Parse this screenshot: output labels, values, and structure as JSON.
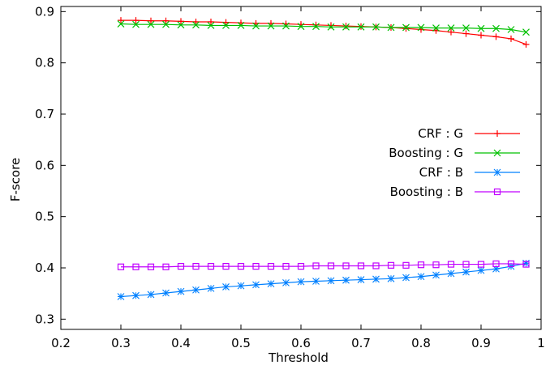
{
  "chart_data": {
    "type": "line",
    "title": "",
    "xlabel": "Threshold",
    "ylabel": "F-score",
    "xlim": [
      0.2,
      1.0
    ],
    "ylim": [
      0.28,
      0.91
    ],
    "xticks": [
      "0.2",
      "0.3",
      "0.4",
      "0.5",
      "0.6",
      "0.7",
      "0.8",
      "0.9",
      "1"
    ],
    "yticks": [
      "0.3",
      "0.4",
      "0.5",
      "0.6",
      "0.7",
      "0.8",
      "0.9"
    ],
    "grid": false,
    "legend_position": "right",
    "x": [
      0.3,
      0.325,
      0.35,
      0.375,
      0.4,
      0.425,
      0.45,
      0.475,
      0.5,
      0.525,
      0.55,
      0.575,
      0.6,
      0.625,
      0.65,
      0.675,
      0.7,
      0.725,
      0.75,
      0.775,
      0.8,
      0.825,
      0.85,
      0.875,
      0.9,
      0.925,
      0.95,
      0.975
    ],
    "series": [
      {
        "name": "CRF : G",
        "color": "#ff0000",
        "marker": "plus",
        "values": [
          0.883,
          0.883,
          0.882,
          0.882,
          0.881,
          0.88,
          0.88,
          0.879,
          0.878,
          0.877,
          0.877,
          0.876,
          0.875,
          0.874,
          0.873,
          0.872,
          0.871,
          0.87,
          0.869,
          0.867,
          0.865,
          0.863,
          0.86,
          0.857,
          0.854,
          0.851,
          0.847,
          0.836
        ]
      },
      {
        "name": "Boosting : G",
        "color": "#00c000",
        "marker": "cross",
        "values": [
          0.876,
          0.875,
          0.875,
          0.875,
          0.874,
          0.874,
          0.873,
          0.873,
          0.873,
          0.872,
          0.872,
          0.872,
          0.871,
          0.871,
          0.87,
          0.87,
          0.87,
          0.87,
          0.869,
          0.869,
          0.869,
          0.868,
          0.868,
          0.868,
          0.867,
          0.867,
          0.865,
          0.86
        ]
      },
      {
        "name": "CRF : B",
        "color": "#0080ff",
        "marker": "star",
        "values": [
          0.344,
          0.346,
          0.348,
          0.351,
          0.354,
          0.357,
          0.36,
          0.363,
          0.365,
          0.367,
          0.369,
          0.371,
          0.373,
          0.374,
          0.375,
          0.376,
          0.377,
          0.378,
          0.379,
          0.381,
          0.383,
          0.386,
          0.389,
          0.392,
          0.395,
          0.398,
          0.403,
          0.409
        ]
      },
      {
        "name": "Boosting : B",
        "color": "#c000ff",
        "marker": "square",
        "values": [
          0.402,
          0.402,
          0.402,
          0.402,
          0.403,
          0.403,
          0.403,
          0.403,
          0.403,
          0.403,
          0.403,
          0.403,
          0.403,
          0.404,
          0.404,
          0.404,
          0.404,
          0.404,
          0.405,
          0.405,
          0.406,
          0.406,
          0.407,
          0.407,
          0.407,
          0.408,
          0.408,
          0.407
        ]
      }
    ]
  }
}
